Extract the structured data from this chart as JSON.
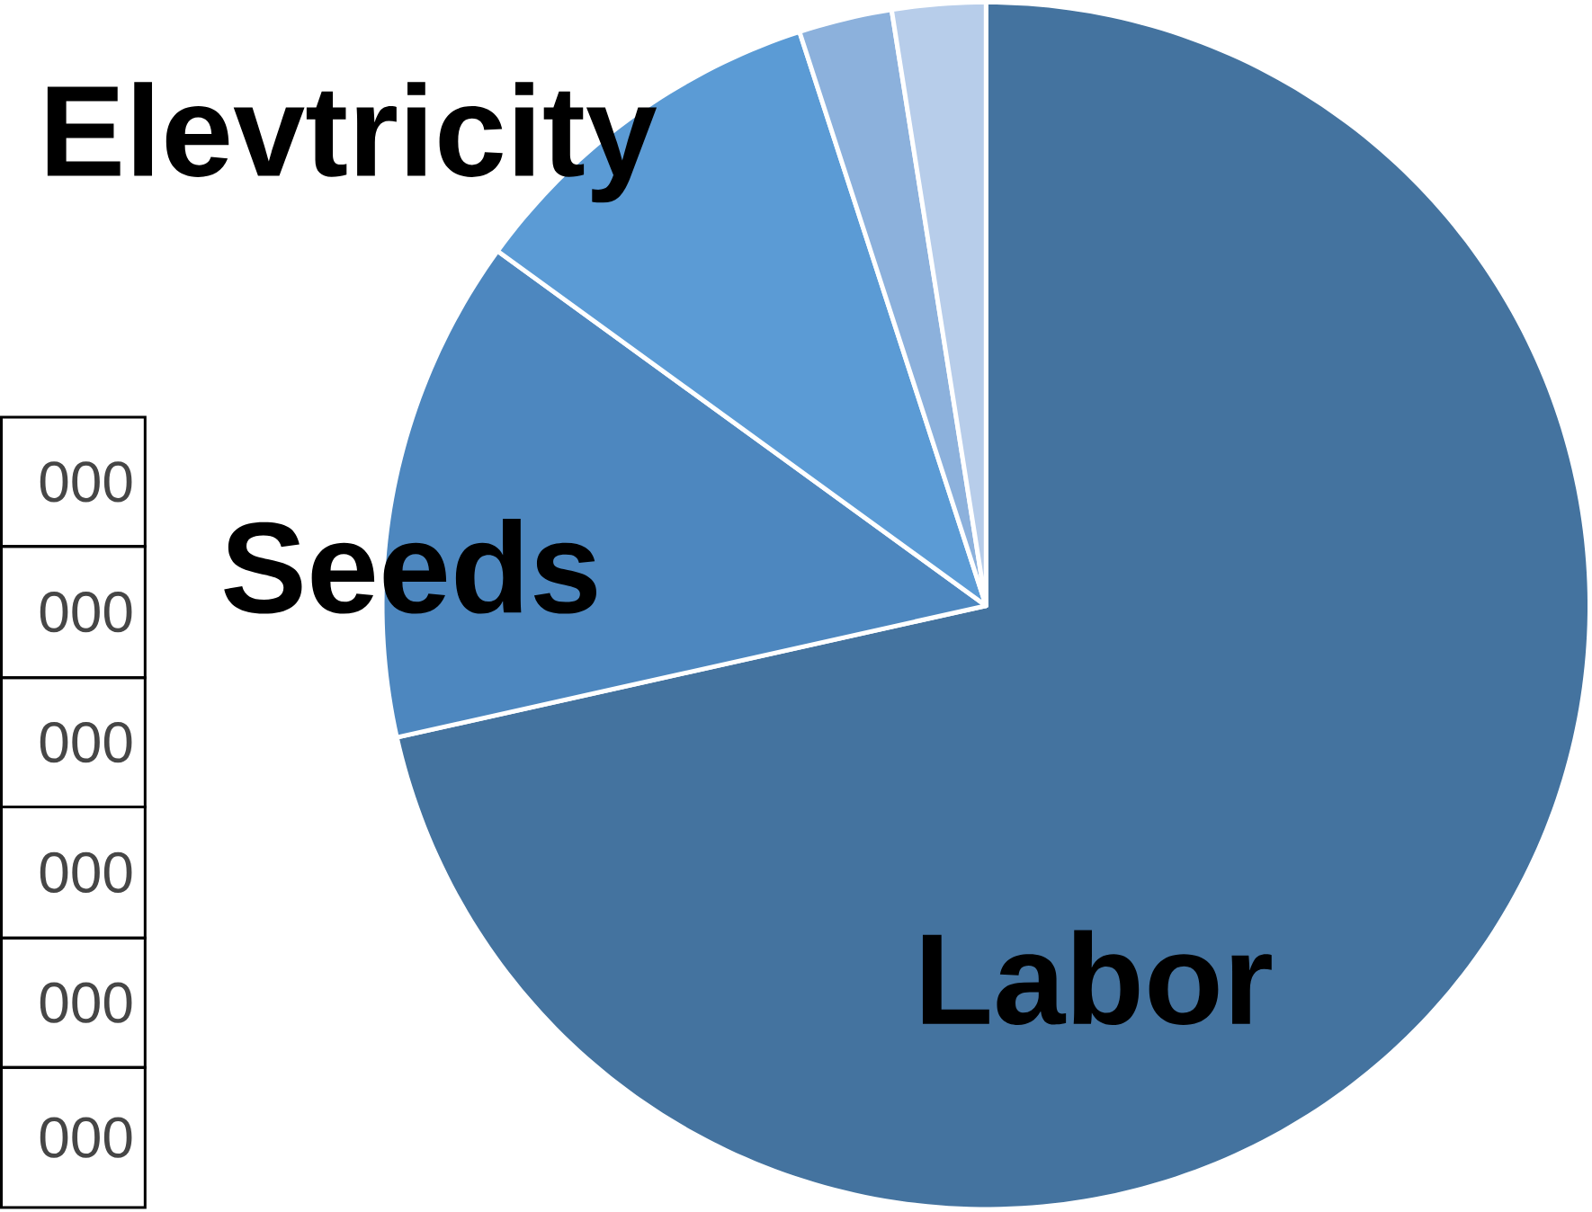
{
  "chart_data": {
    "type": "pie",
    "categories": [
      "Labor",
      "Seeds",
      "Elevtricity",
      null,
      null
    ],
    "values": [
      71.5,
      13.5,
      10,
      2.5,
      2.5
    ],
    "colors": [
      "#44739f",
      "#4d87bf",
      "#5b9bd5",
      "#8cb1dc",
      "#b7cdea"
    ],
    "annotations": [
      "000",
      "000",
      "000",
      "000",
      "000",
      "000"
    ]
  }
}
